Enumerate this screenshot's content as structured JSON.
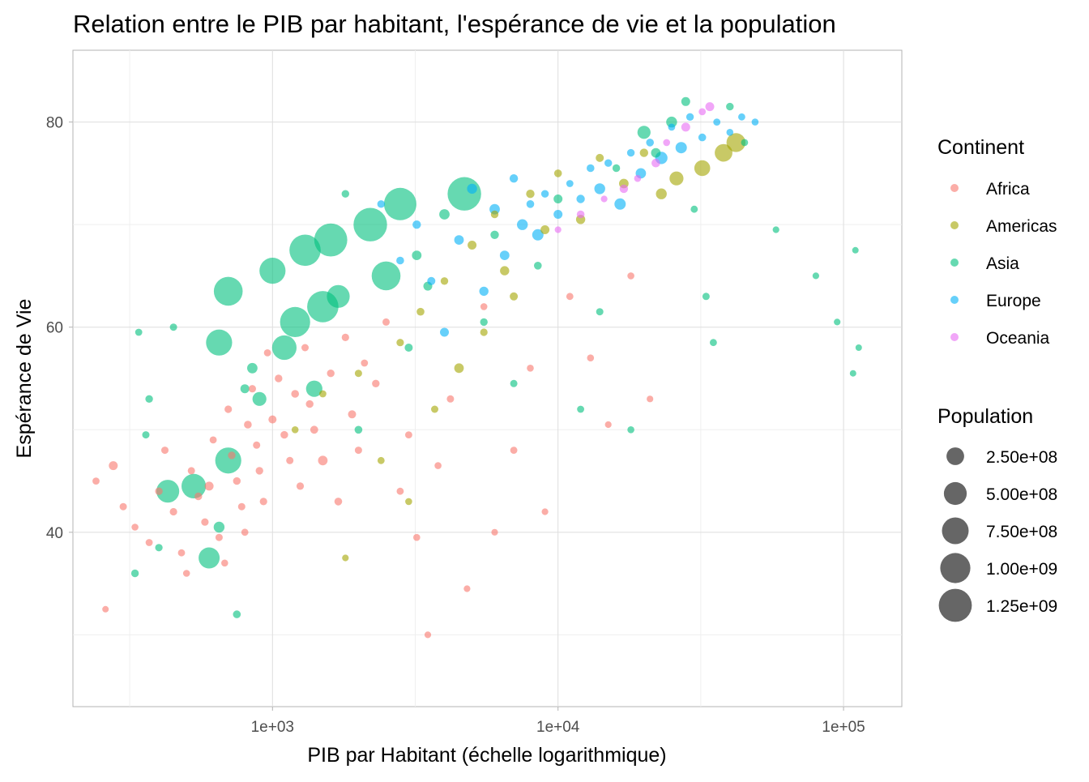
{
  "chart_data": {
    "type": "scatter",
    "title": "Relation entre le PIB par habitant, l'espérance de vie et la population",
    "xlabel": "PIB par Habitant (échelle logarithmique)",
    "ylabel": "Espérance de Vie",
    "x_scale": "log10",
    "xlim": [
      200,
      160000
    ],
    "ylim": [
      23,
      87
    ],
    "grid": true,
    "x_ticks": [
      {
        "value": 1000,
        "label": "1e+03"
      },
      {
        "value": 10000,
        "label": "1e+04"
      },
      {
        "value": 100000,
        "label": "1e+05"
      }
    ],
    "y_ticks": [
      {
        "value": 40,
        "label": "40"
      },
      {
        "value": 60,
        "label": "60"
      },
      {
        "value": 80,
        "label": "80"
      }
    ],
    "legend_position": "right",
    "color_legend": {
      "title": "Continent",
      "items": [
        {
          "name": "Africa",
          "color": "#F8766D"
        },
        {
          "name": "Americas",
          "color": "#A3A500"
        },
        {
          "name": "Asia",
          "color": "#00BF7D"
        },
        {
          "name": "Europe",
          "color": "#00B0F6"
        },
        {
          "name": "Oceania",
          "color": "#E76BF3"
        }
      ]
    },
    "size_legend": {
      "title": "Population",
      "items": [
        {
          "value": 250000000,
          "label": "2.50e+08"
        },
        {
          "value": 500000000,
          "label": "5.00e+08"
        },
        {
          "value": 750000000,
          "label": "7.50e+08"
        },
        {
          "value": 1000000000,
          "label": "1.00e+09"
        },
        {
          "value": 1250000000,
          "label": "1.25e+09"
        }
      ]
    },
    "series": [
      {
        "name": "Africa",
        "points": [
          [
            241,
            45.0,
            5000000
          ],
          [
            277,
            46.5,
            20000000
          ],
          [
            300,
            42.5,
            6000000
          ],
          [
            260,
            32.5,
            2000000
          ],
          [
            330,
            40.5,
            4000000
          ],
          [
            370,
            39.0,
            5000000
          ],
          [
            400,
            44.0,
            8000000
          ],
          [
            420,
            48.0,
            6000000
          ],
          [
            450,
            42.0,
            7000000
          ],
          [
            480,
            38.0,
            5000000
          ],
          [
            500,
            36.0,
            4000000
          ],
          [
            520,
            46.0,
            6000000
          ],
          [
            550,
            43.5,
            9000000
          ],
          [
            580,
            41.0,
            7000000
          ],
          [
            600,
            44.5,
            20000000
          ],
          [
            620,
            49.0,
            5000000
          ],
          [
            650,
            39.5,
            6000000
          ],
          [
            680,
            37.0,
            4000000
          ],
          [
            700,
            52.0,
            7000000
          ],
          [
            720,
            47.5,
            8000000
          ],
          [
            750,
            45.0,
            9000000
          ],
          [
            780,
            42.5,
            6000000
          ],
          [
            800,
            40.0,
            5000000
          ],
          [
            820,
            50.5,
            10000000
          ],
          [
            850,
            54.0,
            7000000
          ],
          [
            880,
            48.5,
            6000000
          ],
          [
            900,
            46.0,
            8000000
          ],
          [
            930,
            43.0,
            7000000
          ],
          [
            960,
            57.5,
            5000000
          ],
          [
            1000,
            51.0,
            12000000
          ],
          [
            1050,
            55.0,
            9000000
          ],
          [
            1100,
            49.5,
            8000000
          ],
          [
            1150,
            47.0,
            6000000
          ],
          [
            1200,
            53.5,
            10000000
          ],
          [
            1250,
            44.5,
            7000000
          ],
          [
            1300,
            58.0,
            6000000
          ],
          [
            1350,
            52.5,
            9000000
          ],
          [
            1400,
            50.0,
            11000000
          ],
          [
            1500,
            47.0,
            30000000
          ],
          [
            1600,
            55.5,
            8000000
          ],
          [
            1700,
            43.0,
            10000000
          ],
          [
            1800,
            59.0,
            7000000
          ],
          [
            1900,
            51.5,
            12000000
          ],
          [
            2000,
            48.0,
            6000000
          ],
          [
            2100,
            56.5,
            5000000
          ],
          [
            2300,
            54.5,
            8000000
          ],
          [
            2500,
            60.5,
            6000000
          ],
          [
            2800,
            44.0,
            5000000
          ],
          [
            3000,
            49.5,
            5000000
          ],
          [
            3200,
            39.5,
            4000000
          ],
          [
            3500,
            30.0,
            3000000
          ],
          [
            3800,
            46.5,
            4000000
          ],
          [
            4200,
            53.0,
            6000000
          ],
          [
            4800,
            34.5,
            3000000
          ],
          [
            5500,
            62.0,
            4000000
          ],
          [
            6000,
            40.0,
            3000000
          ],
          [
            7000,
            48.0,
            5000000
          ],
          [
            8000,
            56.0,
            4000000
          ],
          [
            9000,
            42.0,
            3000000
          ],
          [
            11000,
            63.0,
            5000000
          ],
          [
            13000,
            57.0,
            4000000
          ],
          [
            15000,
            50.5,
            3000000
          ],
          [
            18000,
            65.0,
            4000000
          ],
          [
            21000,
            53.0,
            3000000
          ]
        ]
      },
      {
        "name": "Americas",
        "points": [
          [
            1200,
            50.0,
            4000000
          ],
          [
            1500,
            53.5,
            5000000
          ],
          [
            1800,
            37.5,
            3000000
          ],
          [
            2000,
            55.5,
            6000000
          ],
          [
            2400,
            47.0,
            5000000
          ],
          [
            2800,
            58.5,
            7000000
          ],
          [
            3000,
            43.0,
            4000000
          ],
          [
            3300,
            61.5,
            10000000
          ],
          [
            3700,
            52.0,
            6000000
          ],
          [
            4000,
            64.5,
            8000000
          ],
          [
            4500,
            56.0,
            30000000
          ],
          [
            5000,
            68.0,
            20000000
          ],
          [
            5500,
            59.5,
            7000000
          ],
          [
            6000,
            71.0,
            9000000
          ],
          [
            6500,
            65.5,
            25000000
          ],
          [
            7000,
            63.0,
            12000000
          ],
          [
            8000,
            73.0,
            15000000
          ],
          [
            9000,
            69.5,
            20000000
          ],
          [
            10000,
            75.0,
            10000000
          ],
          [
            12000,
            70.5,
            25000000
          ],
          [
            14000,
            76.5,
            12000000
          ],
          [
            17000,
            74.0,
            30000000
          ],
          [
            20000,
            77.0,
            15000000
          ],
          [
            23000,
            73.0,
            50000000
          ],
          [
            26000,
            74.5,
            120000000
          ],
          [
            32000,
            75.5,
            180000000
          ],
          [
            38000,
            77.0,
            250000000
          ],
          [
            42000,
            78.0,
            300000000
          ]
        ]
      },
      {
        "name": "Asia",
        "points": [
          [
            330,
            36.0,
            9000000
          ],
          [
            340,
            59.5,
            5000000
          ],
          [
            360,
            49.5,
            6000000
          ],
          [
            370,
            53.0,
            8000000
          ],
          [
            400,
            38.5,
            7000000
          ],
          [
            430,
            44.0,
            500000000
          ],
          [
            450,
            60.0,
            6000000
          ],
          [
            530,
            44.5,
            600000000
          ],
          [
            600,
            37.5,
            400000000
          ],
          [
            650,
            40.5,
            50000000
          ],
          [
            650,
            58.5,
            700000000
          ],
          [
            700,
            47.0,
            700000000
          ],
          [
            700,
            63.5,
            900000000
          ],
          [
            750,
            32.0,
            10000000
          ],
          [
            800,
            54.0,
            20000000
          ],
          [
            850,
            56.0,
            40000000
          ],
          [
            900,
            53.0,
            120000000
          ],
          [
            1000,
            65.5,
            700000000
          ],
          [
            1100,
            58.0,
            600000000
          ],
          [
            1200,
            60.5,
            1000000000
          ],
          [
            1300,
            67.5,
            1100000000
          ],
          [
            1400,
            54.0,
            200000000
          ],
          [
            1500,
            62.0,
            1100000000
          ],
          [
            1600,
            68.5,
            1250000000
          ],
          [
            1700,
            63.0,
            500000000
          ],
          [
            1800,
            73.0,
            8000000
          ],
          [
            2000,
            50.0,
            10000000
          ],
          [
            2200,
            70.0,
            1300000000
          ],
          [
            2500,
            65.0,
            900000000
          ],
          [
            2800,
            72.0,
            1200000000
          ],
          [
            3000,
            58.0,
            12000000
          ],
          [
            3200,
            67.0,
            30000000
          ],
          [
            3500,
            64.0,
            20000000
          ],
          [
            4000,
            71.0,
            40000000
          ],
          [
            4700,
            73.0,
            1300000000
          ],
          [
            5500,
            60.5,
            9000000
          ],
          [
            6000,
            69.0,
            15000000
          ],
          [
            7000,
            54.5,
            6000000
          ],
          [
            8500,
            66.0,
            10000000
          ],
          [
            10000,
            72.5,
            20000000
          ],
          [
            12000,
            52.0,
            5000000
          ],
          [
            14000,
            61.5,
            6000000
          ],
          [
            16000,
            75.5,
            9000000
          ],
          [
            18000,
            50.0,
            4000000
          ],
          [
            20000,
            79.0,
            100000000
          ],
          [
            22000,
            77.0,
            30000000
          ],
          [
            25000,
            80.0,
            50000000
          ],
          [
            28000,
            82.0,
            20000000
          ],
          [
            30000,
            71.5,
            5000000
          ],
          [
            33000,
            63.0,
            6000000
          ],
          [
            35000,
            58.5,
            5000000
          ],
          [
            40000,
            81.5,
            8000000
          ],
          [
            45000,
            78.0,
            5000000
          ],
          [
            58000,
            69.5,
            3000000
          ],
          [
            80000,
            65.0,
            3000000
          ],
          [
            95000,
            60.5,
            3000000
          ],
          [
            108000,
            55.5,
            2000000
          ],
          [
            110000,
            67.5,
            2000000
          ],
          [
            113000,
            58.0,
            2000000
          ]
        ]
      },
      {
        "name": "Europe",
        "points": [
          [
            2400,
            72.0,
            8000000
          ],
          [
            2800,
            66.5,
            10000000
          ],
          [
            3200,
            70.0,
            15000000
          ],
          [
            3600,
            64.5,
            12000000
          ],
          [
            4000,
            59.5,
            20000000
          ],
          [
            4500,
            68.5,
            30000000
          ],
          [
            5000,
            73.5,
            35000000
          ],
          [
            5500,
            63.5,
            25000000
          ],
          [
            6000,
            71.5,
            40000000
          ],
          [
            6500,
            67.0,
            30000000
          ],
          [
            7000,
            74.5,
            15000000
          ],
          [
            7500,
            70.0,
            50000000
          ],
          [
            8000,
            72.0,
            10000000
          ],
          [
            8500,
            69.0,
            60000000
          ],
          [
            9000,
            73.0,
            8000000
          ],
          [
            10000,
            71.0,
            20000000
          ],
          [
            11000,
            74.0,
            5000000
          ],
          [
            12000,
            72.5,
            15000000
          ],
          [
            13000,
            75.5,
            10000000
          ],
          [
            14000,
            73.5,
            50000000
          ],
          [
            15000,
            76.0,
            8000000
          ],
          [
            16500,
            72.0,
            60000000
          ],
          [
            18000,
            77.0,
            9000000
          ],
          [
            19500,
            75.0,
            40000000
          ],
          [
            21000,
            78.0,
            10000000
          ],
          [
            23000,
            76.5,
            80000000
          ],
          [
            25000,
            79.5,
            5000000
          ],
          [
            27000,
            77.5,
            60000000
          ],
          [
            29000,
            80.5,
            8000000
          ],
          [
            32000,
            78.5,
            10000000
          ],
          [
            36000,
            80.0,
            5000000
          ],
          [
            40000,
            79.0,
            4000000
          ],
          [
            44000,
            80.5,
            5000000
          ],
          [
            49000,
            80.0,
            4000000
          ]
        ]
      },
      {
        "name": "Oceania",
        "points": [
          [
            10000,
            69.5,
            3000000
          ],
          [
            12000,
            71.0,
            10000000
          ],
          [
            14500,
            72.5,
            3000000
          ],
          [
            17000,
            73.5,
            15000000
          ],
          [
            19000,
            74.5,
            4000000
          ],
          [
            22000,
            76.0,
            18000000
          ],
          [
            24000,
            78.0,
            4000000
          ],
          [
            28000,
            79.5,
            20000000
          ],
          [
            32000,
            81.0,
            5000000
          ],
          [
            34000,
            81.5,
            20000000
          ]
        ]
      }
    ]
  }
}
